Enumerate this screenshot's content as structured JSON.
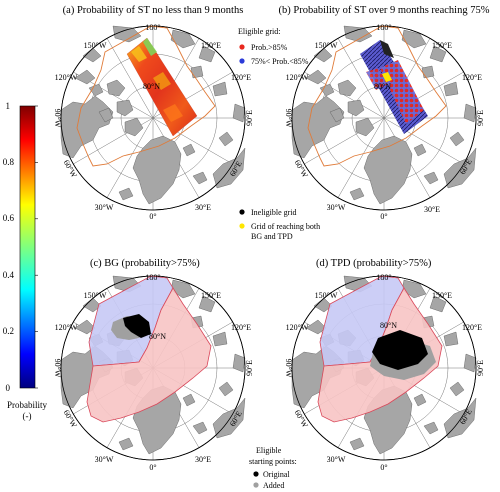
{
  "panels": [
    {
      "id": "a",
      "title": "(a) Probability of ST no less than 9 months"
    },
    {
      "id": "b",
      "title": "(b) Probability of ST over 9 months reaching 75%"
    },
    {
      "id": "c",
      "title": "(c) BG (probability>75%)"
    },
    {
      "id": "d",
      "title": "(d) TPD (probability>75%)"
    }
  ],
  "map_labels": {
    "lon_180": "180°",
    "lon_150w": "150°W",
    "lon_150e": "150°E",
    "lon_120w": "120°W",
    "lon_120e": "120°E",
    "lon_90w": "90°W",
    "lon_90e": "90°E",
    "lon_60w": "60°W",
    "lon_60e": "60°E",
    "lon_30w": "30°W",
    "lon_30e": "30°E",
    "lon_0": "0°",
    "lat_80n": "80°N"
  },
  "colorbar": {
    "ticks": [
      "1",
      "0.8",
      "0.6",
      "0.4",
      "0.2",
      "0"
    ],
    "label_line1": "Probability",
    "label_line2": "(-)"
  },
  "legend_b": {
    "title": "Eligible grid:",
    "item1": "Prob.>85%",
    "item2": "75%< Prob.<85%",
    "item3": "Ineligible grid",
    "item4_line1": "Grid of reaching both",
    "item4_line2": "BG and TPD",
    "colors": {
      "red": "#e8281e",
      "blue": "#2b3bd8",
      "black": "#000000",
      "yellow": "#ffe600"
    }
  },
  "legend_d": {
    "title_line1": "Eligible",
    "title_line2": "starting points:",
    "item1": "Original",
    "item2": "Added",
    "colors": {
      "original": "#000000",
      "added": "#a0a0a0"
    }
  },
  "colors": {
    "land": "#a6a6a6",
    "domain_outline": "#e07b39",
    "bg_region": "#c7c9f5",
    "tpd_region": "#f7c4c4",
    "region_outline": "#d9485a"
  }
}
